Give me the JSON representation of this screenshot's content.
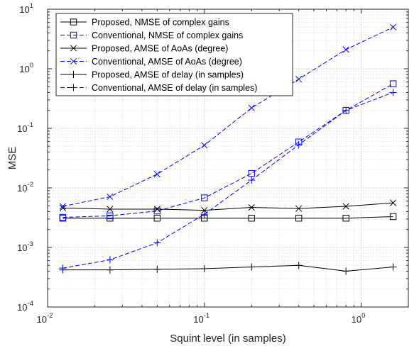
{
  "chart_data": {
    "type": "line",
    "xlabel": "Squint level (in samples)",
    "ylabel": "MSE",
    "xscale": "log",
    "yscale": "log",
    "xlim": [
      0.01,
      2
    ],
    "ylim": [
      0.0001,
      10
    ],
    "grid": true,
    "legend_position": "top-left",
    "x_ticks": [
      {
        "base": "10",
        "exp": "-2"
      },
      {
        "base": "10",
        "exp": "-1"
      },
      {
        "base": "10",
        "exp": "0"
      }
    ],
    "y_ticks": [
      {
        "base": "10",
        "exp": "-4"
      },
      {
        "base": "10",
        "exp": "-3"
      },
      {
        "base": "10",
        "exp": "-2"
      },
      {
        "base": "10",
        "exp": "-1"
      },
      {
        "base": "10",
        "exp": "0"
      },
      {
        "base": "10",
        "exp": "1"
      }
    ],
    "x": [
      0.0125,
      0.025,
      0.05,
      0.1,
      0.2,
      0.4,
      0.8,
      1.6
    ],
    "series": [
      {
        "name": "Proposed, NMSE of complex gains",
        "color": "#000000",
        "dash": "solid",
        "marker": "square",
        "values": [
          0.0031,
          0.0031,
          0.0031,
          0.0031,
          0.0031,
          0.0031,
          0.0031,
          0.0033
        ]
      },
      {
        "name": "Conventional, NMSE of complex gains",
        "color": "#0000ff",
        "dash": "dashed",
        "marker": "square",
        "values": [
          0.0032,
          0.0034,
          0.0041,
          0.0068,
          0.0175,
          0.059,
          0.2,
          0.56
        ]
      },
      {
        "name": "Proposed, AMSE of AoAs (degree)",
        "color": "#000000",
        "dash": "solid",
        "marker": "x",
        "values": [
          0.0046,
          0.0044,
          0.0044,
          0.0042,
          0.0047,
          0.0045,
          0.0049,
          0.0056
        ]
      },
      {
        "name": "Conventional, AMSE of AoAs (degree)",
        "color": "#0000ff",
        "dash": "dashed",
        "marker": "x",
        "values": [
          0.0049,
          0.0071,
          0.017,
          0.052,
          0.22,
          0.67,
          2.1,
          5.0
        ]
      },
      {
        "name": "Proposed, AMSE of delay (in samples)",
        "color": "#000000",
        "dash": "solid",
        "marker": "plus",
        "values": [
          0.00042,
          0.00042,
          0.00043,
          0.00044,
          0.00047,
          0.0005,
          0.0004,
          0.00047
        ]
      },
      {
        "name": "Conventional, AMSE of delay (in samples)",
        "color": "#0000ff",
        "dash": "dashed",
        "marker": "plus",
        "values": [
          0.00045,
          0.00062,
          0.0012,
          0.0036,
          0.0135,
          0.053,
          0.2,
          0.4
        ]
      }
    ]
  }
}
